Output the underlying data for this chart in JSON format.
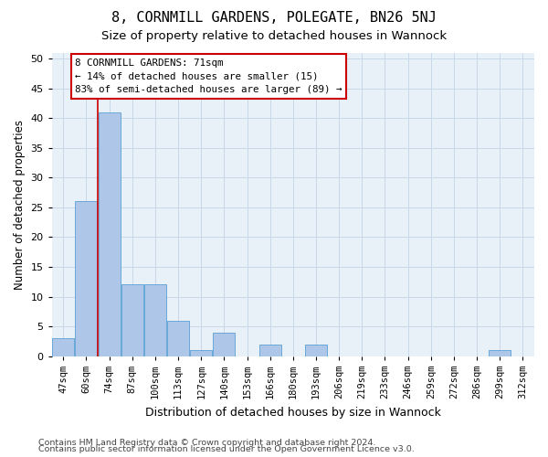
{
  "title": "8, CORNMILL GARDENS, POLEGATE, BN26 5NJ",
  "subtitle": "Size of property relative to detached houses in Wannock",
  "xlabel": "Distribution of detached houses by size in Wannock",
  "ylabel": "Number of detached properties",
  "categories": [
    "47sqm",
    "60sqm",
    "74sqm",
    "87sqm",
    "100sqm",
    "113sqm",
    "127sqm",
    "140sqm",
    "153sqm",
    "166sqm",
    "180sqm",
    "193sqm",
    "206sqm",
    "219sqm",
    "233sqm",
    "246sqm",
    "259sqm",
    "272sqm",
    "286sqm",
    "299sqm",
    "312sqm"
  ],
  "values": [
    3,
    26,
    41,
    12,
    12,
    6,
    1,
    4,
    0,
    2,
    0,
    2,
    0,
    0,
    0,
    0,
    0,
    0,
    0,
    1,
    0
  ],
  "bar_color": "#aec6e8",
  "bar_edge_color": "#5a9fd4",
  "vline_x": 1.5,
  "vline_color": "#cc0000",
  "annotation_line1": "8 CORNMILL GARDENS: 71sqm",
  "annotation_line2": "← 14% of detached houses are smaller (15)",
  "annotation_line3": "83% of semi-detached houses are larger (89) →",
  "box_edge_color": "#cc0000",
  "ylim": [
    0,
    51
  ],
  "yticks": [
    0,
    5,
    10,
    15,
    20,
    25,
    30,
    35,
    40,
    45,
    50
  ],
  "grid_color": "#c8d8e8",
  "bg_color": "#e8f0f8",
  "footer1": "Contains HM Land Registry data © Crown copyright and database right 2024.",
  "footer2": "Contains public sector information licensed under the Open Government Licence v3.0.",
  "title_fontsize": 11,
  "subtitle_fontsize": 9.5,
  "ylabel_fontsize": 8.5,
  "xlabel_fontsize": 9,
  "tick_fontsize": 7.5,
  "ytick_fontsize": 8,
  "annotation_fontsize": 7.8,
  "footer_fontsize": 6.8
}
